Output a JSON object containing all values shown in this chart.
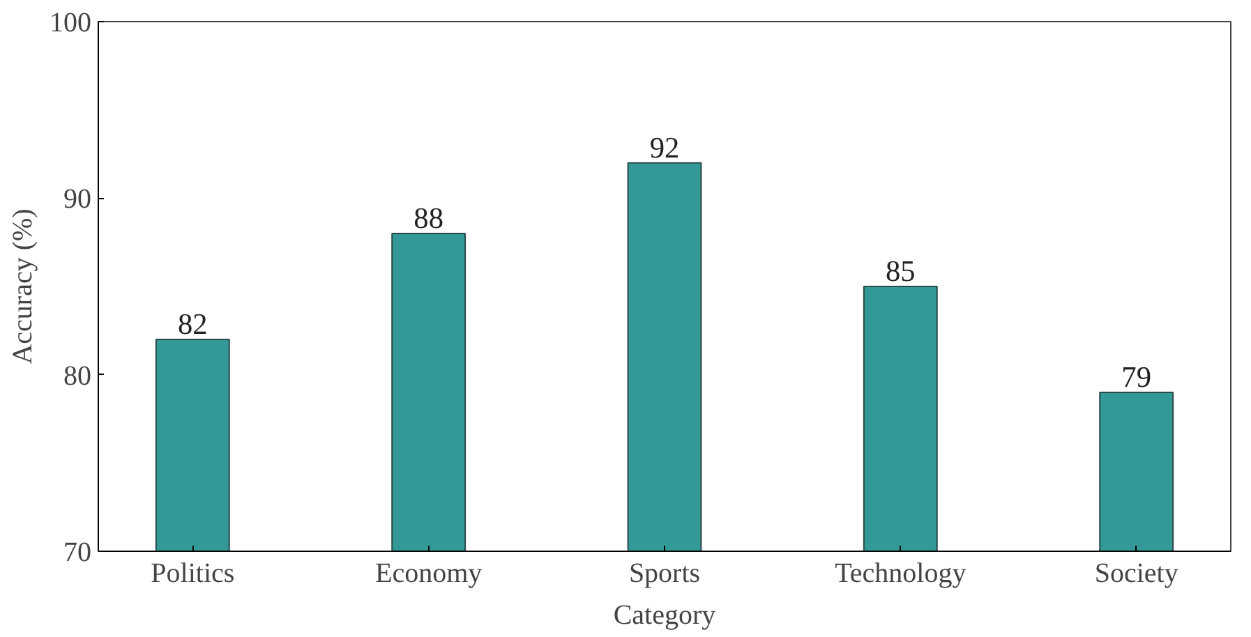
{
  "chart_data": {
    "type": "bar",
    "xlabel": "Category",
    "ylabel": "Accuracy (%)",
    "categories": [
      "Politics",
      "Economy",
      "Sports",
      "Technology",
      "Society"
    ],
    "values": [
      82,
      88,
      92,
      85,
      79
    ],
    "color": "#329996",
    "ylim": [
      70,
      100
    ],
    "yticks": [
      70,
      80,
      90,
      100
    ],
    "data_labels": true,
    "grid": false
  }
}
